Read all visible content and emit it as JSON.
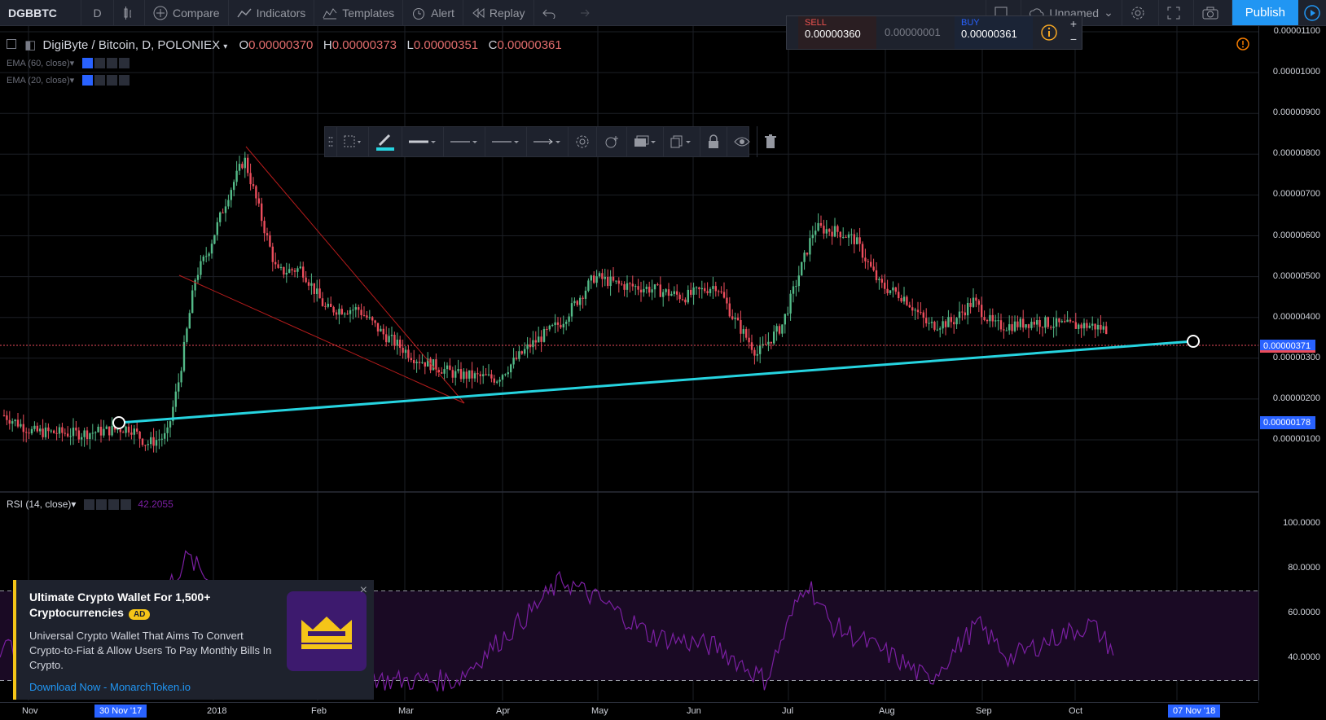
{
  "toolbar": {
    "symbol": "DGBBTC",
    "interval": "D",
    "compare": "Compare",
    "indicators": "Indicators",
    "templates": "Templates",
    "alert": "Alert",
    "replay": "Replay",
    "layout_name": "Unnamed",
    "publish": "Publish"
  },
  "legend": {
    "title": "DigiByte / Bitcoin, D, POLONIEX",
    "open_label": "O",
    "open": "0.00000370",
    "high_label": "H",
    "high": "0.00000373",
    "low_label": "L",
    "low": "0.00000351",
    "close_label": "C",
    "close": "0.00000361"
  },
  "indicators": {
    "ema1": "EMA (60, close)",
    "ema2": "EMA (20, close)",
    "rsi": "RSI (14, close)",
    "rsi_value": "42.2055"
  },
  "trade": {
    "sell_label": "SELL",
    "sell_price": "0.00000360",
    "spread": "0.00000001",
    "buy_label": "BUY",
    "buy_price": "0.00000361",
    "plus": "+",
    "minus": "−"
  },
  "price_axis": {
    "labels": [
      "0.00001100",
      "0.00001000",
      "0.00000900",
      "0.00000800",
      "0.00000700",
      "0.00000600",
      "0.00000500",
      "0.00000400",
      "0.00000300",
      "0.00000200",
      "0.00000100"
    ],
    "current_price": "0.00000371",
    "line_price": "0.00000178",
    "rsi_labels": [
      "100.0000",
      "80.0000",
      "60.0000",
      "40.0000"
    ]
  },
  "time_axis": {
    "labels": [
      "Nov",
      "2018",
      "Feb",
      "Mar",
      "Apr",
      "May",
      "Jun",
      "Jul",
      "Aug",
      "Sep",
      "Oct"
    ],
    "start_tag": "30 Nov '17",
    "end_tag": "07 Nov '18"
  },
  "ad": {
    "title": "Ultimate Crypto Wallet For 1,500+ Cryptocurrencies",
    "badge": "AD",
    "body": "Universal Crypto Wallet That Aims To Convert Crypto-to-Fiat & Allow Users To Pay Monthly Bills In Crypto.",
    "link": "Download Now - MonarchToken.io",
    "close": "×"
  },
  "colors": {
    "up": "#53b987",
    "down": "#eb4d5c",
    "trendline": "#26d4e0",
    "rsi": "#7b1fa2",
    "accent": "#2196f3"
  }
}
